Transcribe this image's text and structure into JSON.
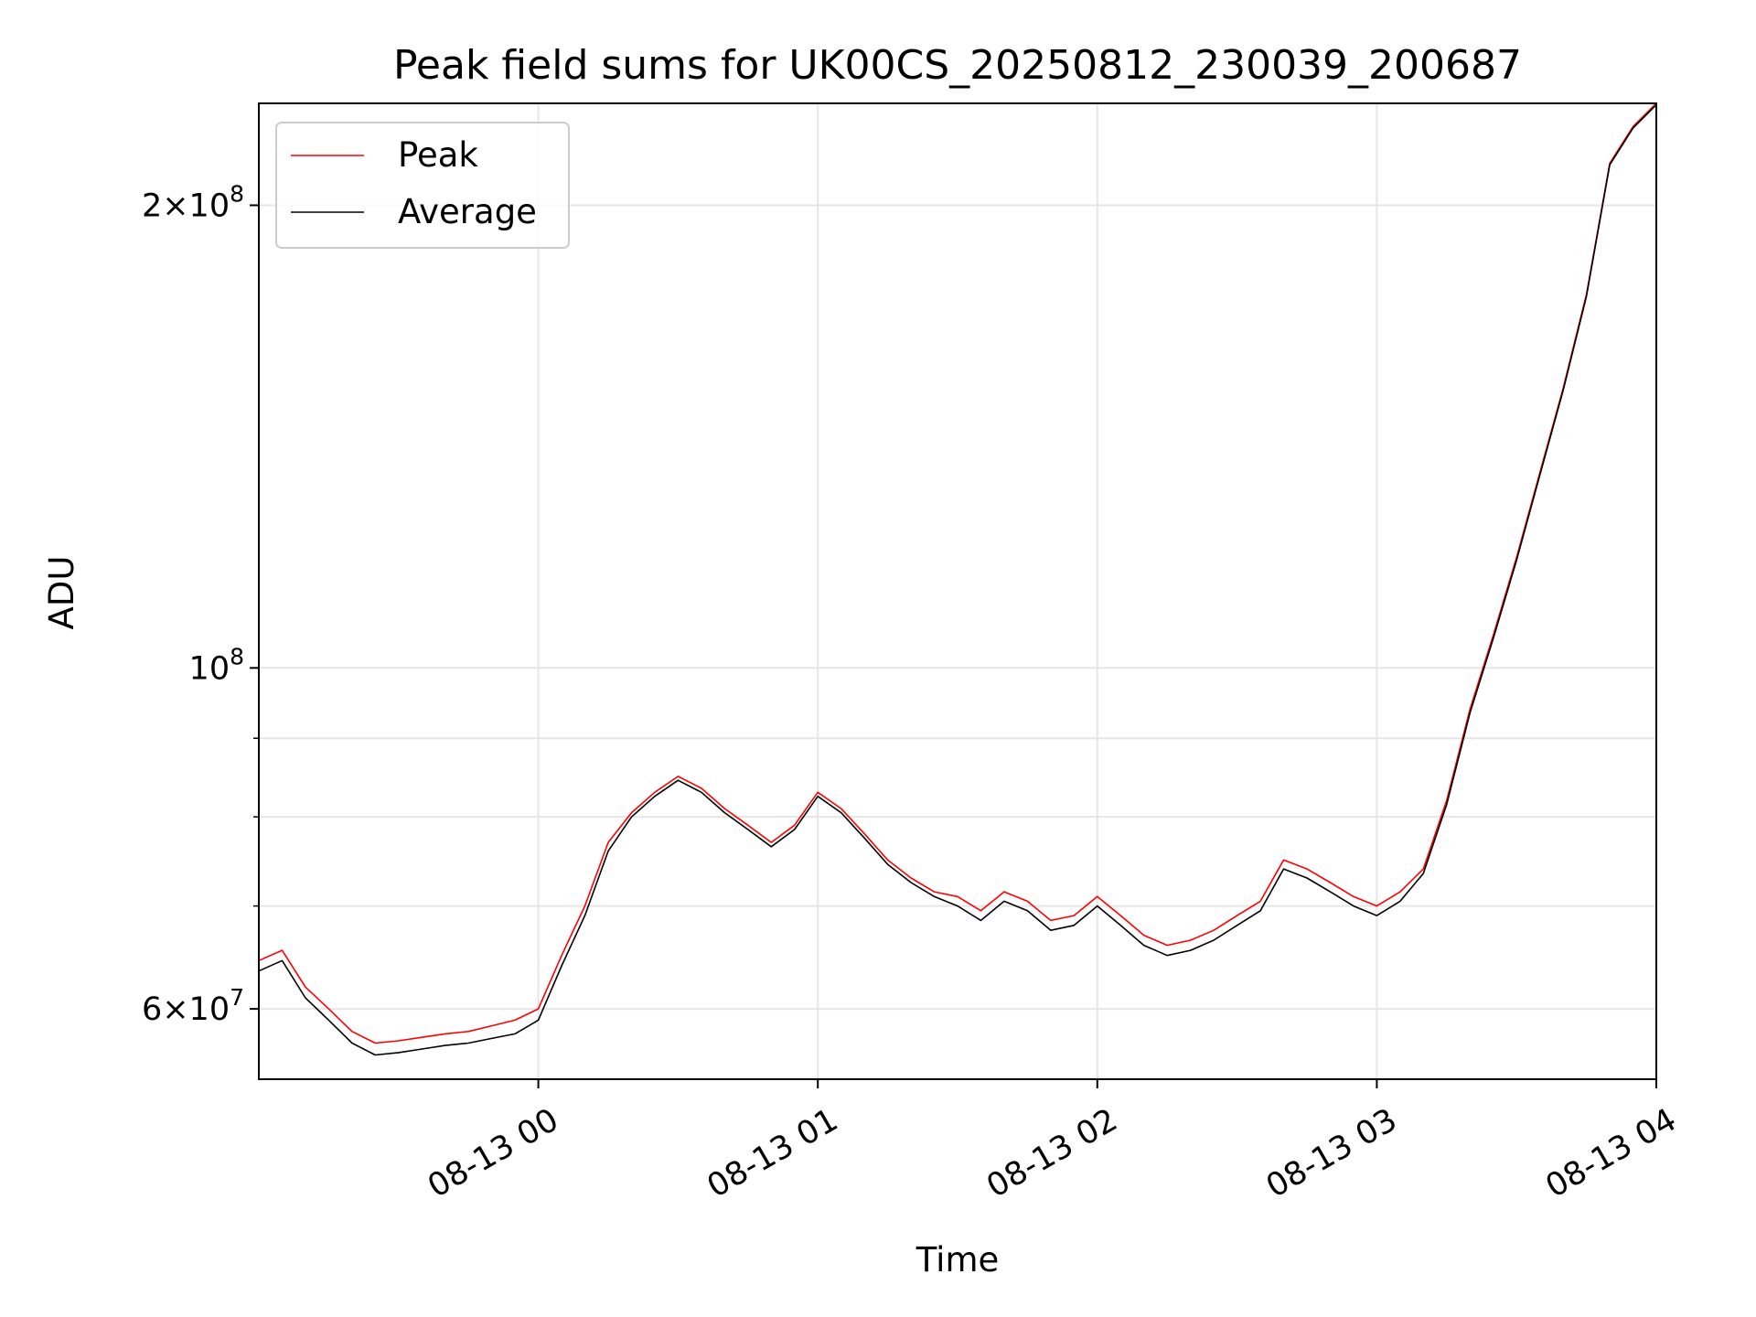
{
  "chart_data": {
    "type": "line",
    "title": "Peak field sums for UK00CS_20250812_230039_200687",
    "xlabel": "Time",
    "ylabel": "ADU",
    "yscale": "log",
    "xlim": [
      "2025-08-12 23:00",
      "2025-08-13 04:00"
    ],
    "ylim": [
      54000000,
      233000000
    ],
    "grid": true,
    "legend_position": "upper-left",
    "x_ticks": [
      "2025-08-13 00:00",
      "2025-08-13 01:00",
      "2025-08-13 02:00",
      "2025-08-13 03:00",
      "2025-08-13 04:00"
    ],
    "x_tick_labels": [
      "08-13 00",
      "08-13 01",
      "08-13 02",
      "08-13 03",
      "08-13 04"
    ],
    "y_major_ticks": [
      {
        "value": 60000000,
        "mantissa": "6",
        "exponent": "7"
      },
      {
        "value": 100000000,
        "mantissa": "",
        "exponent": "8"
      },
      {
        "value": 200000000,
        "mantissa": "2",
        "exponent": "8"
      }
    ],
    "y_minor_ticks": [
      70000000,
      80000000,
      90000000
    ],
    "x": [
      "2025-08-12 23:00",
      "2025-08-12 23:05",
      "2025-08-12 23:10",
      "2025-08-12 23:15",
      "2025-08-12 23:20",
      "2025-08-12 23:25",
      "2025-08-12 23:30",
      "2025-08-12 23:35",
      "2025-08-12 23:40",
      "2025-08-12 23:45",
      "2025-08-12 23:50",
      "2025-08-12 23:55",
      "2025-08-13 00:00",
      "2025-08-13 00:05",
      "2025-08-13 00:10",
      "2025-08-13 00:15",
      "2025-08-13 00:20",
      "2025-08-13 00:25",
      "2025-08-13 00:30",
      "2025-08-13 00:35",
      "2025-08-13 00:40",
      "2025-08-13 00:45",
      "2025-08-13 00:50",
      "2025-08-13 00:55",
      "2025-08-13 01:00",
      "2025-08-13 01:05",
      "2025-08-13 01:10",
      "2025-08-13 01:15",
      "2025-08-13 01:20",
      "2025-08-13 01:25",
      "2025-08-13 01:30",
      "2025-08-13 01:35",
      "2025-08-13 01:40",
      "2025-08-13 01:45",
      "2025-08-13 01:50",
      "2025-08-13 01:55",
      "2025-08-13 02:00",
      "2025-08-13 02:05",
      "2025-08-13 02:10",
      "2025-08-13 02:15",
      "2025-08-13 02:20",
      "2025-08-13 02:25",
      "2025-08-13 02:30",
      "2025-08-13 02:35",
      "2025-08-13 02:40",
      "2025-08-13 02:45",
      "2025-08-13 02:50",
      "2025-08-13 02:55",
      "2025-08-13 03:00",
      "2025-08-13 03:05",
      "2025-08-13 03:10",
      "2025-08-13 03:15",
      "2025-08-13 03:20",
      "2025-08-13 03:25",
      "2025-08-13 03:30",
      "2025-08-13 03:35",
      "2025-08-13 03:40",
      "2025-08-13 03:45",
      "2025-08-13 03:50",
      "2025-08-13 03:55",
      "2025-08-13 04:00"
    ],
    "series": [
      {
        "name": "Peak",
        "color": "#ff0000",
        "values": [
          64500000,
          65500000,
          62000000,
          60000000,
          58000000,
          57000000,
          57200000,
          57500000,
          57800000,
          58000000,
          58500000,
          59000000,
          60000000,
          65000000,
          70000000,
          77000000,
          80500000,
          83000000,
          85000000,
          83500000,
          81000000,
          79000000,
          77000000,
          79000000,
          83000000,
          81000000,
          78000000,
          75000000,
          73000000,
          71500000,
          71000000,
          69500000,
          71500000,
          70500000,
          68500000,
          69000000,
          71000000,
          69000000,
          67000000,
          66000000,
          66500000,
          67500000,
          69000000,
          70500000,
          75000000,
          74000000,
          72500000,
          71000000,
          70000000,
          71500000,
          74000000,
          82000000,
          94000000,
          105000000,
          118000000,
          134000000,
          152000000,
          175000000,
          213000000,
          225000000,
          233000000
        ]
      },
      {
        "name": "Average",
        "color": "#000000",
        "values": [
          63500000,
          64500000,
          61000000,
          59000000,
          57000000,
          56000000,
          56200000,
          56500000,
          56800000,
          57000000,
          57400000,
          57800000,
          59000000,
          64000000,
          69000000,
          76000000,
          80000000,
          82500000,
          84500000,
          83000000,
          80500000,
          78500000,
          76500000,
          78500000,
          82500000,
          80500000,
          77500000,
          74500000,
          72500000,
          71000000,
          70000000,
          68500000,
          70500000,
          69500000,
          67500000,
          68000000,
          70000000,
          68000000,
          66000000,
          65000000,
          65500000,
          66500000,
          68000000,
          69500000,
          74000000,
          73000000,
          71500000,
          70000000,
          69000000,
          70500000,
          73500000,
          81500000,
          93500000,
          104500000,
          117500000,
          133500000,
          151500000,
          174500000,
          212500000,
          224500000,
          232500000
        ]
      }
    ]
  }
}
